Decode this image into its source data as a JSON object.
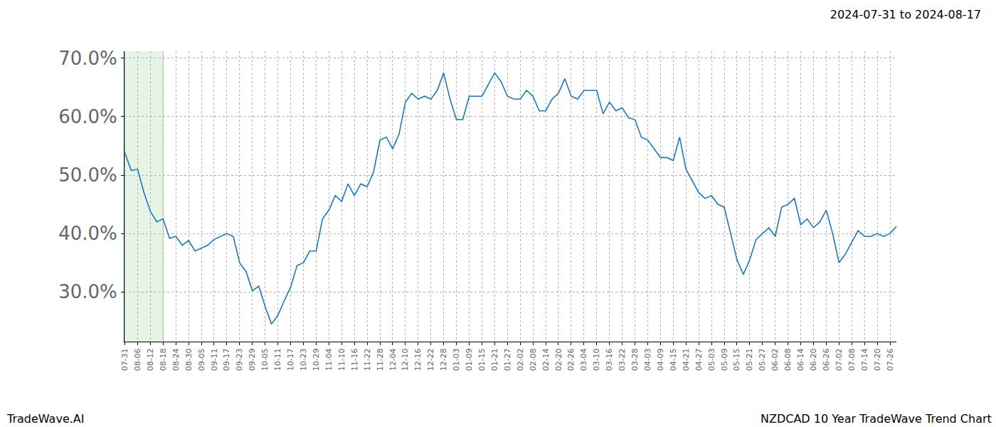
{
  "chart_data": {
    "type": "line",
    "title": "2024-07-31 to 2024-08-17",
    "annotations": [
      "TradeWave.AI",
      "NZDCAD 10 Year TradeWave Trend Chart"
    ],
    "shaded_span": [
      "07-31",
      "08-18"
    ],
    "categories": [
      "07-31",
      null,
      "08-06",
      null,
      "08-12",
      null,
      "08-18",
      null,
      "08-24",
      null,
      "08-30",
      null,
      "09-05",
      null,
      "09-11",
      null,
      "09-17",
      null,
      "09-23",
      null,
      "09-29",
      null,
      "10-05",
      null,
      "10-11",
      null,
      "10-17",
      null,
      "10-23",
      null,
      "10-29",
      null,
      "11-04",
      null,
      "11-10",
      null,
      "11-16",
      null,
      "11-22",
      null,
      "11-28",
      null,
      "12-04",
      null,
      "12-10",
      null,
      "12-16",
      null,
      "12-22",
      null,
      "12-28",
      null,
      "01-03",
      null,
      "01-09",
      null,
      "01-15",
      null,
      "01-21",
      null,
      "01-27",
      null,
      "02-02",
      null,
      "02-08",
      null,
      "02-14",
      null,
      "02-20",
      null,
      "02-26",
      null,
      "03-04",
      null,
      "03-10",
      null,
      "03-16",
      null,
      "03-22",
      null,
      "03-28",
      null,
      "04-03",
      null,
      "04-09",
      null,
      "04-15",
      null,
      "04-21",
      null,
      "04-27",
      null,
      "05-03",
      null,
      "05-09",
      null,
      "05-15",
      null,
      "05-21",
      null,
      "05-27",
      null,
      "06-02",
      null,
      "06-08",
      null,
      "06-14",
      null,
      "06-20",
      null,
      "06-26",
      null,
      "07-02",
      null,
      "07-08",
      null,
      "07-14",
      null,
      "07-20",
      null,
      "07-26",
      null
    ],
    "values": [
      53.8,
      50.8,
      51,
      47,
      43.8,
      42,
      42.5,
      39.2,
      39.5,
      38,
      38.8,
      37,
      37.5,
      38,
      39,
      39.5,
      40,
      39.5,
      35,
      33.5,
      30.2,
      31,
      27.5,
      24.5,
      26,
      28.5,
      30.8,
      34.5,
      35,
      37,
      37,
      42.5,
      44,
      46.5,
      45.5,
      48.5,
      46.5,
      48.5,
      48,
      50.5,
      56,
      56.5,
      54.5,
      57,
      62.5,
      64,
      63,
      63.5,
      63,
      64.5,
      67.5,
      63,
      59.5,
      59.5,
      63.5,
      63.5,
      63.5,
      65.5,
      67.5,
      66,
      63.5,
      63,
      63,
      64.5,
      63.5,
      61,
      61,
      63,
      64,
      66.5,
      63.5,
      63,
      64.5,
      64.5,
      64.5,
      60.5,
      62.5,
      61,
      61.5,
      59.8,
      59.5,
      56.5,
      56,
      54.5,
      53,
      53,
      52.5,
      56.5,
      51,
      49,
      47,
      46,
      46.5,
      45,
      44.5,
      40,
      35.5,
      33,
      35.5,
      39,
      40,
      41,
      39.5,
      44.5,
      45,
      46,
      41.5,
      42.5,
      41,
      42,
      44,
      40,
      35,
      36.5,
      38.5,
      40.5,
      39.5,
      39.5,
      40,
      39.5,
      40,
      41.2
    ],
    "color": "#1f77b4",
    "ylim": [
      21.5,
      71.2
    ],
    "yticks": [
      {
        "value": 30,
        "label": "30.0%"
      },
      {
        "value": 40,
        "label": "40.0%"
      },
      {
        "value": 50,
        "label": "50.0%"
      },
      {
        "value": 60,
        "label": "60.0%"
      },
      {
        "value": 70,
        "label": "70.0%"
      }
    ],
    "grid": true
  }
}
